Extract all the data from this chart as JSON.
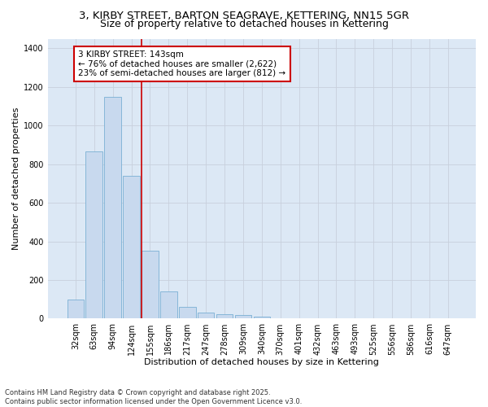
{
  "title_line1": "3, KIRBY STREET, BARTON SEAGRAVE, KETTERING, NN15 5GR",
  "title_line2": "Size of property relative to detached houses in Kettering",
  "xlabel": "Distribution of detached houses by size in Kettering",
  "ylabel": "Number of detached properties",
  "categories": [
    "32sqm",
    "63sqm",
    "94sqm",
    "124sqm",
    "155sqm",
    "186sqm",
    "217sqm",
    "247sqm",
    "278sqm",
    "309sqm",
    "340sqm",
    "370sqm",
    "401sqm",
    "432sqm",
    "463sqm",
    "493sqm",
    "525sqm",
    "556sqm",
    "586sqm",
    "616sqm",
    "647sqm"
  ],
  "values": [
    100,
    865,
    1150,
    740,
    350,
    140,
    60,
    33,
    25,
    18,
    10,
    0,
    0,
    0,
    0,
    0,
    0,
    0,
    0,
    0,
    0
  ],
  "bar_color": "#c8d9ee",
  "bar_edge_color": "#7aafd4",
  "red_line_x": 3.55,
  "annotation_text": "3 KIRBY STREET: 143sqm\n← 76% of detached houses are smaller (2,622)\n23% of semi-detached houses are larger (812) →",
  "annotation_box_color": "#ffffff",
  "annotation_box_edge": "#cc0000",
  "red_line_color": "#cc0000",
  "ylim": [
    0,
    1450
  ],
  "yticks": [
    0,
    200,
    400,
    600,
    800,
    1000,
    1200,
    1400
  ],
  "grid_color": "#c8d0dc",
  "background_color": "#dce8f5",
  "fig_background_color": "#ffffff",
  "footer_text": "Contains HM Land Registry data © Crown copyright and database right 2025.\nContains public sector information licensed under the Open Government Licence v3.0.",
  "title_fontsize": 9.5,
  "subtitle_fontsize": 9,
  "axis_label_fontsize": 8,
  "tick_fontsize": 7,
  "annotation_fontsize": 7.5,
  "footer_fontsize": 6
}
